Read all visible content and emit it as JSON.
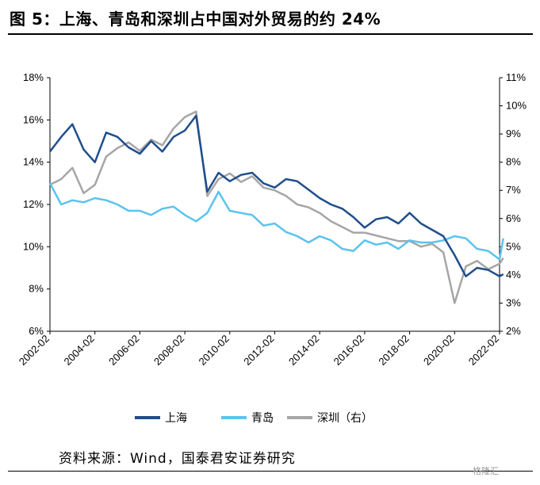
{
  "figure": {
    "title": "图 5：上海、青岛和深圳占中国对外贸易的约 24%",
    "source": "资料来源：Wind，国泰君安证券研究",
    "watermark": "格隆汇"
  },
  "colors": {
    "shanghai": "#1f4e8c",
    "qingdao": "#5bc3ef",
    "shenzhen": "#a6a6a6"
  },
  "chart_data": {
    "type": "line",
    "x_tick_labels": [
      "2002-02",
      "2004-02",
      "2006-02",
      "2008-02",
      "2010-02",
      "2012-02",
      "2014-02",
      "2016-02",
      "2018-02",
      "2020-02",
      "2022-02"
    ],
    "x_range": [
      "2002-02",
      "2022-02"
    ],
    "y_left": {
      "ticks": [
        "6%",
        "8%",
        "10%",
        "12%",
        "14%",
        "16%",
        "18%"
      ],
      "range": [
        6,
        18
      ],
      "unit": "%"
    },
    "y_right": {
      "ticks": [
        "2%",
        "3%",
        "4%",
        "5%",
        "6%",
        "7%",
        "8%",
        "9%",
        "10%",
        "11%"
      ],
      "range": [
        2,
        11
      ],
      "unit": "%"
    },
    "legend": {
      "position": "bottom",
      "entries": [
        "上海",
        "青岛",
        "深圳（右）"
      ]
    },
    "x_axis_dates": [
      "2002-02",
      "2002-08",
      "2003-02",
      "2003-08",
      "2004-02",
      "2004-08",
      "2005-02",
      "2005-08",
      "2006-02",
      "2006-08",
      "2007-02",
      "2007-08",
      "2008-02",
      "2008-08",
      "2009-02",
      "2009-08",
      "2010-02",
      "2010-08",
      "2011-02",
      "2011-08",
      "2012-02",
      "2012-08",
      "2013-02",
      "2013-08",
      "2014-02",
      "2014-08",
      "2015-02",
      "2015-08",
      "2016-02",
      "2016-08",
      "2017-02",
      "2017-08",
      "2018-02",
      "2018-08",
      "2019-02",
      "2019-08",
      "2020-02",
      "2020-08",
      "2021-02",
      "2021-08",
      "2022-02",
      "2022-04"
    ],
    "series": [
      {
        "name": "上海",
        "axis": "left",
        "values": [
          14.5,
          15.2,
          15.8,
          14.6,
          14.0,
          15.4,
          15.2,
          14.7,
          14.4,
          15.0,
          14.5,
          15.2,
          15.5,
          16.2,
          12.6,
          13.5,
          13.1,
          13.4,
          13.5,
          13.0,
          12.8,
          13.2,
          13.1,
          12.7,
          12.3,
          12.0,
          11.8,
          11.4,
          10.9,
          11.3,
          11.4,
          11.1,
          11.6,
          11.1,
          10.8,
          10.5,
          9.6,
          8.6,
          9.0,
          8.9,
          8.6,
          8.7
        ]
      },
      {
        "name": "青岛",
        "axis": "left",
        "values": [
          13.0,
          12.0,
          12.2,
          12.1,
          12.3,
          12.2,
          12.0,
          11.7,
          11.7,
          11.5,
          11.8,
          11.9,
          11.5,
          11.2,
          11.6,
          12.6,
          11.7,
          11.6,
          11.5,
          11.0,
          11.1,
          10.7,
          10.5,
          10.2,
          10.5,
          10.3,
          9.9,
          9.8,
          10.3,
          10.1,
          10.2,
          9.9,
          10.3,
          10.2,
          10.2,
          10.3,
          10.5,
          10.4,
          9.9,
          9.8,
          9.4,
          10.4
        ]
      },
      {
        "name": "深圳（右）",
        "axis": "right",
        "values": [
          7.2,
          7.4,
          7.8,
          6.9,
          7.2,
          8.2,
          8.5,
          8.7,
          8.4,
          8.8,
          8.6,
          9.2,
          9.6,
          9.8,
          6.8,
          7.4,
          7.6,
          7.3,
          7.5,
          7.1,
          7.0,
          6.8,
          6.5,
          6.4,
          6.2,
          5.9,
          5.7,
          5.5,
          5.5,
          5.4,
          5.3,
          5.2,
          5.2,
          5.0,
          5.1,
          4.8,
          3.0,
          4.3,
          4.5,
          4.2,
          4.4,
          4.6
        ]
      }
    ],
    "grid": false
  }
}
